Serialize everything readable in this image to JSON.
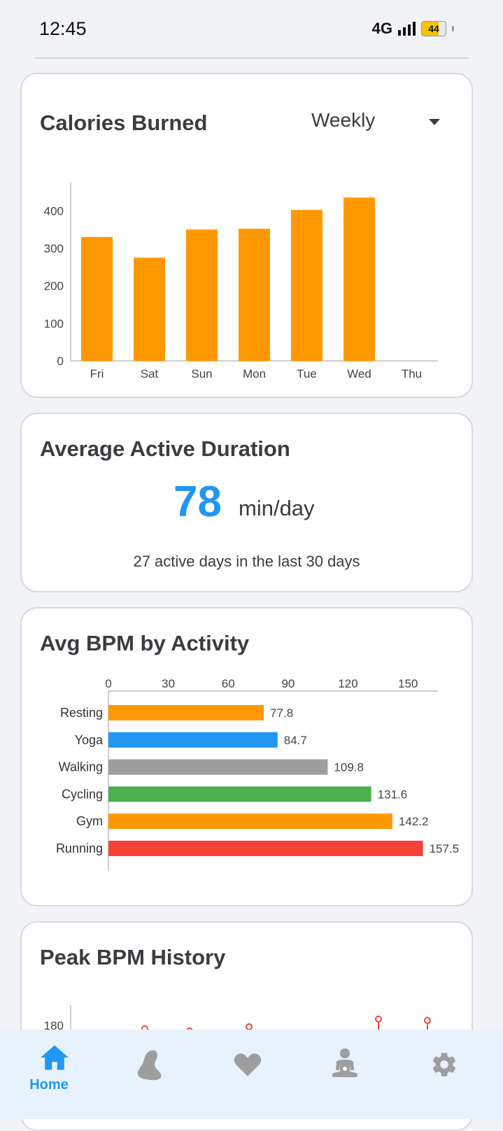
{
  "status": {
    "time": "12:45",
    "network": "4G",
    "battery": "44"
  },
  "calories": {
    "title": "Calories Burned",
    "period": "Weekly",
    "chart_data": {
      "type": "bar",
      "categories": [
        "Fri",
        "Sat",
        "Sun",
        "Mon",
        "Tue",
        "Wed",
        "Thu"
      ],
      "values": [
        330,
        275,
        350,
        352,
        402,
        435,
        null
      ],
      "ylim": [
        0,
        475
      ],
      "yticks": [
        0,
        100,
        200,
        300,
        400
      ],
      "color": "#ff9800"
    }
  },
  "duration": {
    "title": "Average Active Duration",
    "value": "78",
    "unit": "min/day",
    "subtitle": "27 active days in the last 30 days"
  },
  "bpm_activity": {
    "title": "Avg BPM by Activity",
    "chart_data": {
      "type": "bar",
      "orientation": "horizontal",
      "categories": [
        "Resting",
        "Yoga",
        "Walking",
        "Cycling",
        "Gym",
        "Running"
      ],
      "values": [
        77.8,
        84.7,
        109.8,
        131.6,
        142.2,
        157.5
      ],
      "value_labels": [
        "77.8",
        "84.7",
        "109.8",
        "131.6",
        "142.2",
        "157.5"
      ],
      "colors": [
        "#ff9800",
        "#2196f3",
        "#9e9e9e",
        "#4caf50",
        "#ff9800",
        "#f44336"
      ],
      "xticks": [
        0,
        30,
        60,
        90,
        120,
        150
      ],
      "xlim": [
        0,
        165
      ]
    }
  },
  "peak_bpm": {
    "title": "Peak BPM History",
    "chart_data": {
      "type": "line",
      "yticks": [
        180
      ],
      "color": "#f44336"
    }
  },
  "nav": {
    "items": [
      {
        "label": "Home",
        "icon": "home-icon",
        "active": true
      },
      {
        "label": "",
        "icon": "footprint-icon",
        "active": false
      },
      {
        "label": "",
        "icon": "heart-icon",
        "active": false
      },
      {
        "label": "",
        "icon": "meditation-icon",
        "active": false
      },
      {
        "label": "",
        "icon": "settings-icon",
        "active": false
      }
    ],
    "active_color": "#2196f3",
    "inactive_color": "#9e9e9e"
  }
}
